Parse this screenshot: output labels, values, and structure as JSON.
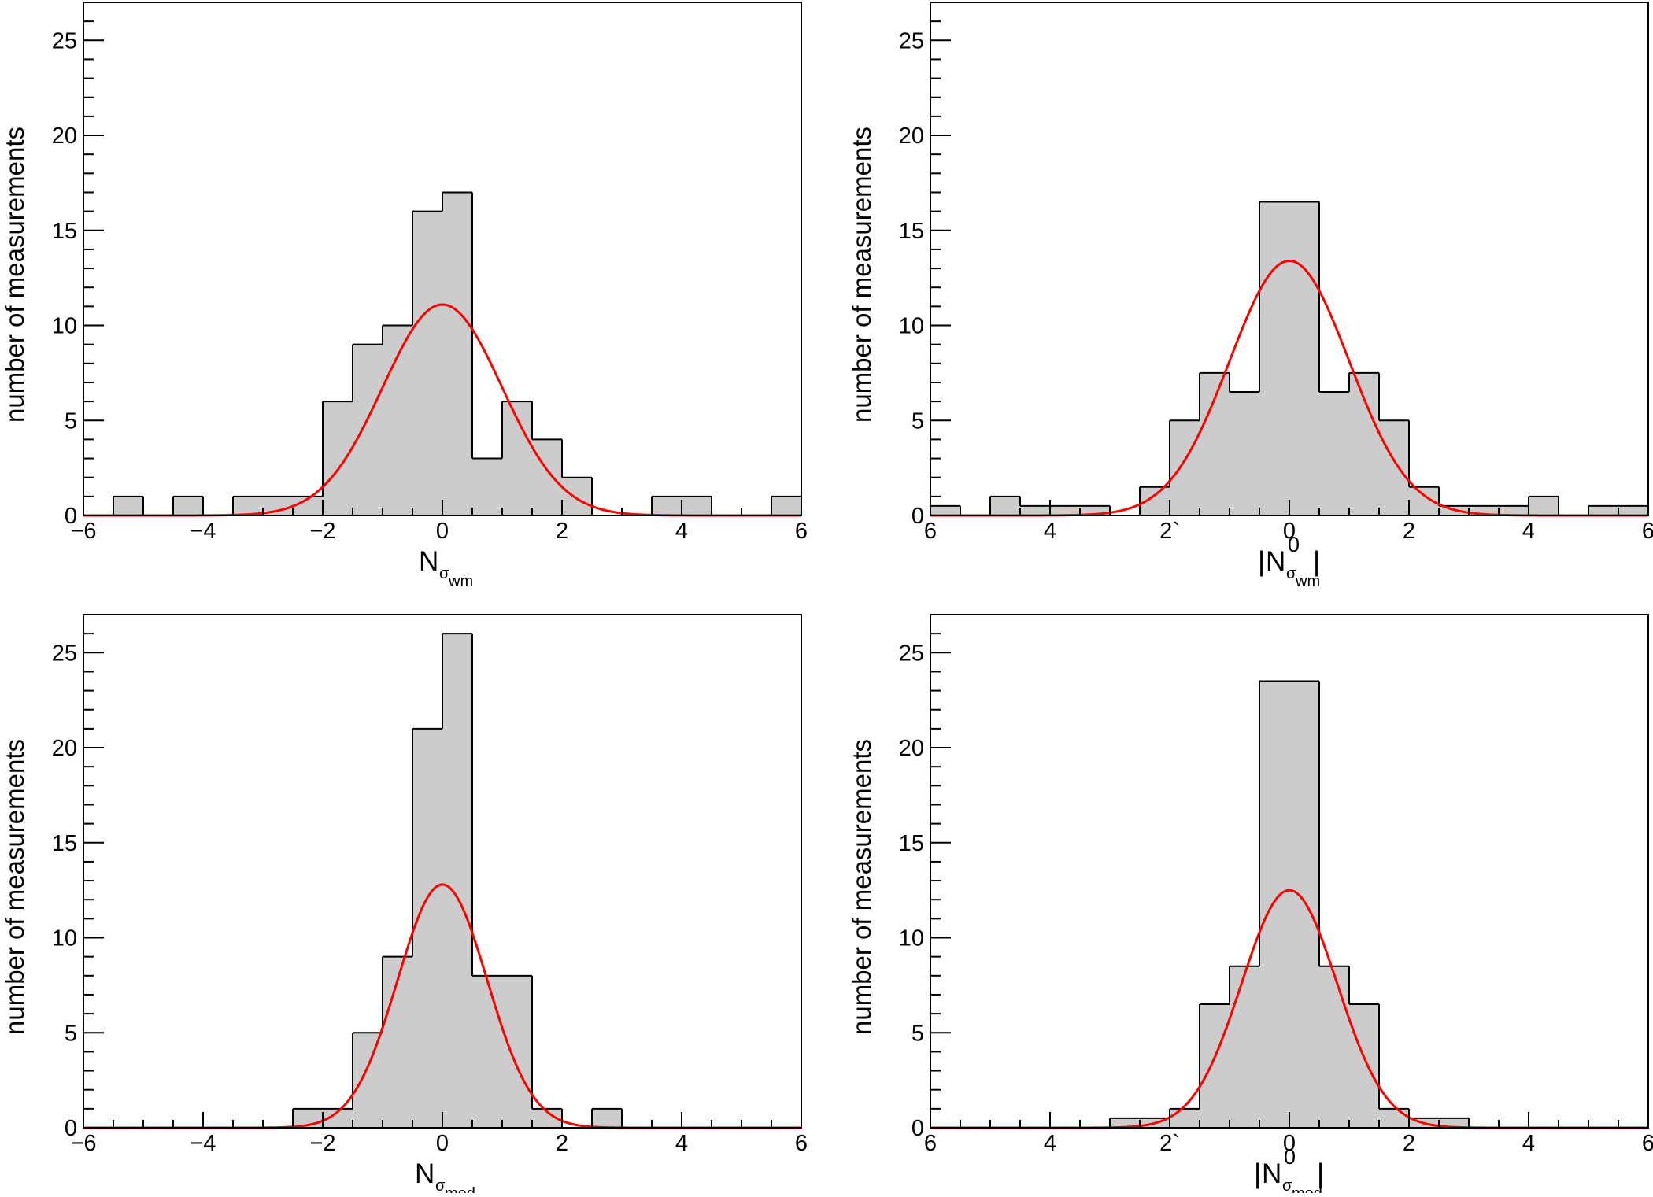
{
  "figure": {
    "ylabel": "number of measurements",
    "colors": {
      "fill": "#cccccc",
      "edge": "#000000",
      "fit": "#ff0000",
      "frame": "#000000"
    }
  },
  "chart_data": [
    {
      "type": "histogram",
      "panel": "top-left",
      "xlabel": {
        "base": "N",
        "sub_symbol": "σ",
        "sub_text": "wm",
        "sup": "",
        "abs": false
      },
      "ylabel": "number of measurements",
      "xlim": [
        -6,
        6
      ],
      "ylim": [
        0,
        27
      ],
      "xticks": [
        -6,
        -4,
        -2,
        0,
        2,
        4,
        6
      ],
      "xtick_labels": [
        "−6",
        "−4",
        "−2",
        "0",
        "2",
        "4",
        "6"
      ],
      "yticks": [
        0,
        5,
        10,
        15,
        20,
        25
      ],
      "bin_edges": [
        -6,
        -5.5,
        -5,
        -4.5,
        -4,
        -3.5,
        -3,
        -2.5,
        -2,
        -1.5,
        -1,
        -0.5,
        0,
        0.5,
        1,
        1.5,
        2,
        2.5,
        3,
        3.5,
        4,
        4.5,
        5,
        5.5,
        6
      ],
      "counts": [
        0,
        1,
        0,
        1,
        0,
        1,
        1,
        1,
        6,
        9,
        10,
        16,
        17,
        3,
        6,
        4,
        2,
        0,
        0,
        1,
        1,
        0,
        0,
        1
      ],
      "fit": {
        "type": "gaussian",
        "amplitude": 11.1,
        "mean": 0.0,
        "sigma": 1.0
      }
    },
    {
      "type": "histogram",
      "panel": "top-right",
      "xlabel": {
        "base": "N",
        "sub_symbol": "σ",
        "sub_text": "wm",
        "sup": "0",
        "abs": true
      },
      "ylabel": "number of measurements",
      "xlim": [
        -6,
        6
      ],
      "ylim": [
        0,
        27
      ],
      "xticks": [
        -6,
        -4,
        -2,
        0,
        2,
        4,
        6
      ],
      "xtick_labels": [
        "6",
        "4",
        "2`",
        "0",
        "2",
        "4",
        "6"
      ],
      "yticks": [
        0,
        5,
        10,
        15,
        20,
        25
      ],
      "bin_edges": [
        -6,
        -5.5,
        -5,
        -4.5,
        -4,
        -3.5,
        -3,
        -2.5,
        -2,
        -1.5,
        -1,
        -0.5,
        0.5,
        1,
        1.5,
        2,
        2.5,
        3,
        3.5,
        4,
        4.5,
        5,
        5.5,
        6
      ],
      "counts": [
        0.5,
        0,
        1,
        0.5,
        0.5,
        0.5,
        0,
        1.5,
        5,
        7.5,
        6.5,
        16.5,
        6.5,
        7.5,
        5,
        1.5,
        0.5,
        0.5,
        0.5,
        1,
        0,
        0.5,
        0.5
      ],
      "fit": {
        "type": "gaussian",
        "amplitude": 13.4,
        "mean": 0.0,
        "sigma": 1.0
      }
    },
    {
      "type": "histogram",
      "panel": "bottom-left",
      "xlabel": {
        "base": "N",
        "sub_symbol": "σ",
        "sub_text": "med",
        "sup": "",
        "abs": false
      },
      "ylabel": "number of measurements",
      "xlim": [
        -6,
        6
      ],
      "ylim": [
        0,
        27
      ],
      "xticks": [
        -6,
        -4,
        -2,
        0,
        2,
        4,
        6
      ],
      "xtick_labels": [
        "−6",
        "−4",
        "−2",
        "0",
        "2",
        "4",
        "6"
      ],
      "yticks": [
        0,
        5,
        10,
        15,
        20,
        25
      ],
      "bin_edges": [
        -6,
        -5.5,
        -5,
        -4.5,
        -4,
        -3.5,
        -3,
        -2.5,
        -2,
        -1.5,
        -1,
        -0.5,
        0,
        0.5,
        1,
        1.5,
        2,
        2.5,
        3,
        3.5,
        4,
        4.5,
        5,
        5.5,
        6
      ],
      "counts": [
        0,
        0,
        0,
        0,
        0,
        0,
        0,
        1,
        1,
        5,
        9,
        21,
        26,
        8,
        8,
        1,
        0,
        1,
        0,
        0,
        0,
        0,
        0,
        0
      ],
      "fit": {
        "type": "gaussian",
        "amplitude": 12.8,
        "mean": 0.0,
        "sigma": 0.75
      }
    },
    {
      "type": "histogram",
      "panel": "bottom-right",
      "xlabel": {
        "base": "N",
        "sub_symbol": "σ",
        "sub_text": "med",
        "sup": "0",
        "abs": true
      },
      "ylabel": "number of measurements",
      "xlim": [
        -6,
        6
      ],
      "ylim": [
        0,
        27
      ],
      "xticks": [
        -6,
        -4,
        -2,
        0,
        2,
        4,
        6
      ],
      "xtick_labels": [
        "6",
        "4",
        "2`",
        "0",
        "2",
        "4",
        "6"
      ],
      "yticks": [
        0,
        5,
        10,
        15,
        20,
        25
      ],
      "bin_edges": [
        -6,
        -5.5,
        -5,
        -4.5,
        -4,
        -3.5,
        -3,
        -2.5,
        -2,
        -1.5,
        -1,
        -0.5,
        0.5,
        1,
        1.5,
        2,
        2.5,
        3,
        3.5,
        4,
        4.5,
        5,
        5.5,
        6
      ],
      "counts": [
        0,
        0,
        0,
        0,
        0,
        0,
        0.5,
        0.5,
        1,
        6.5,
        8.5,
        23.5,
        8.5,
        6.5,
        1,
        0.5,
        0.5,
        0,
        0,
        0,
        0,
        0,
        0
      ],
      "fit": {
        "type": "gaussian",
        "amplitude": 12.5,
        "mean": 0.0,
        "sigma": 0.8
      }
    }
  ]
}
